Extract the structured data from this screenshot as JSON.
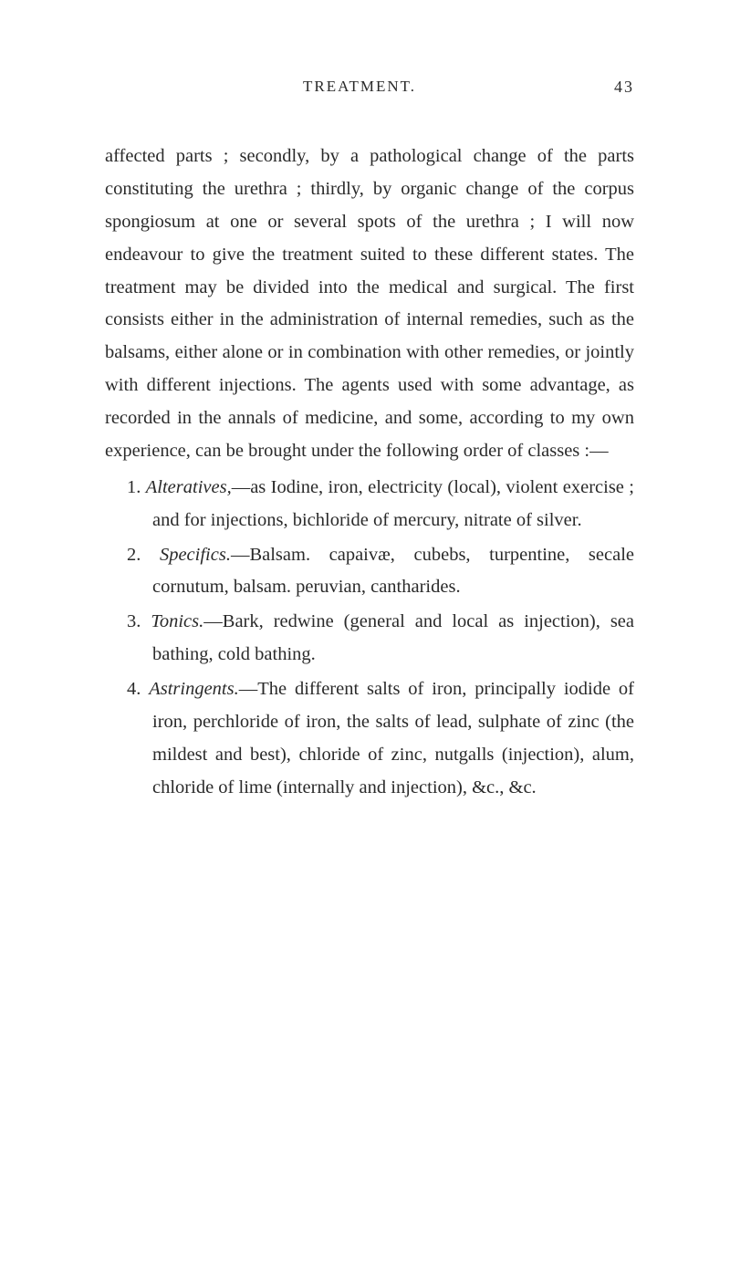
{
  "header": {
    "title": "TREATMENT.",
    "page_number": "43"
  },
  "paragraph": "affected parts ; secondly, by a pathological change of the parts constituting the urethra ; thirdly, by organic change of the corpus spongiosum at one or several spots of the urethra ; I will now endeavour to give the treatment suited to these different states. The treatment may be divided into the medical and surgical. The first consists either in the administration of internal remedies, such as the balsams, either alone or in combination with other remedies, or jointly with different injections. The agents used with some advantage, as recorded in the annals of medicine, and some, according to my own experience, can be brought under the following order of classes :—",
  "items": {
    "item1": {
      "number": "1.",
      "label": "Alteratives,",
      "text": "—as Iodine, iron, electricity (local), violent exercise ; and for injections, bichloride of mercury, nitrate of silver."
    },
    "item2": {
      "number": "2.",
      "label": "Specifics.",
      "text": "—Balsam. capaivæ, cubebs, turpentine, secale cornutum, balsam. peruvian, cantharides."
    },
    "item3": {
      "number": "3.",
      "label": "Tonics.",
      "text": "—Bark, redwine (general and local as injection), sea bathing, cold bathing."
    },
    "item4": {
      "number": "4.",
      "label": "Astringents.",
      "text": "—The different salts of iron, principally iodide of iron, perchloride of iron, the salts of lead, sulphate of zinc (the mildest and best), chloride of zinc, nutgalls (injection), alum, chloride of lime (internally and injection), &c., &c."
    }
  }
}
